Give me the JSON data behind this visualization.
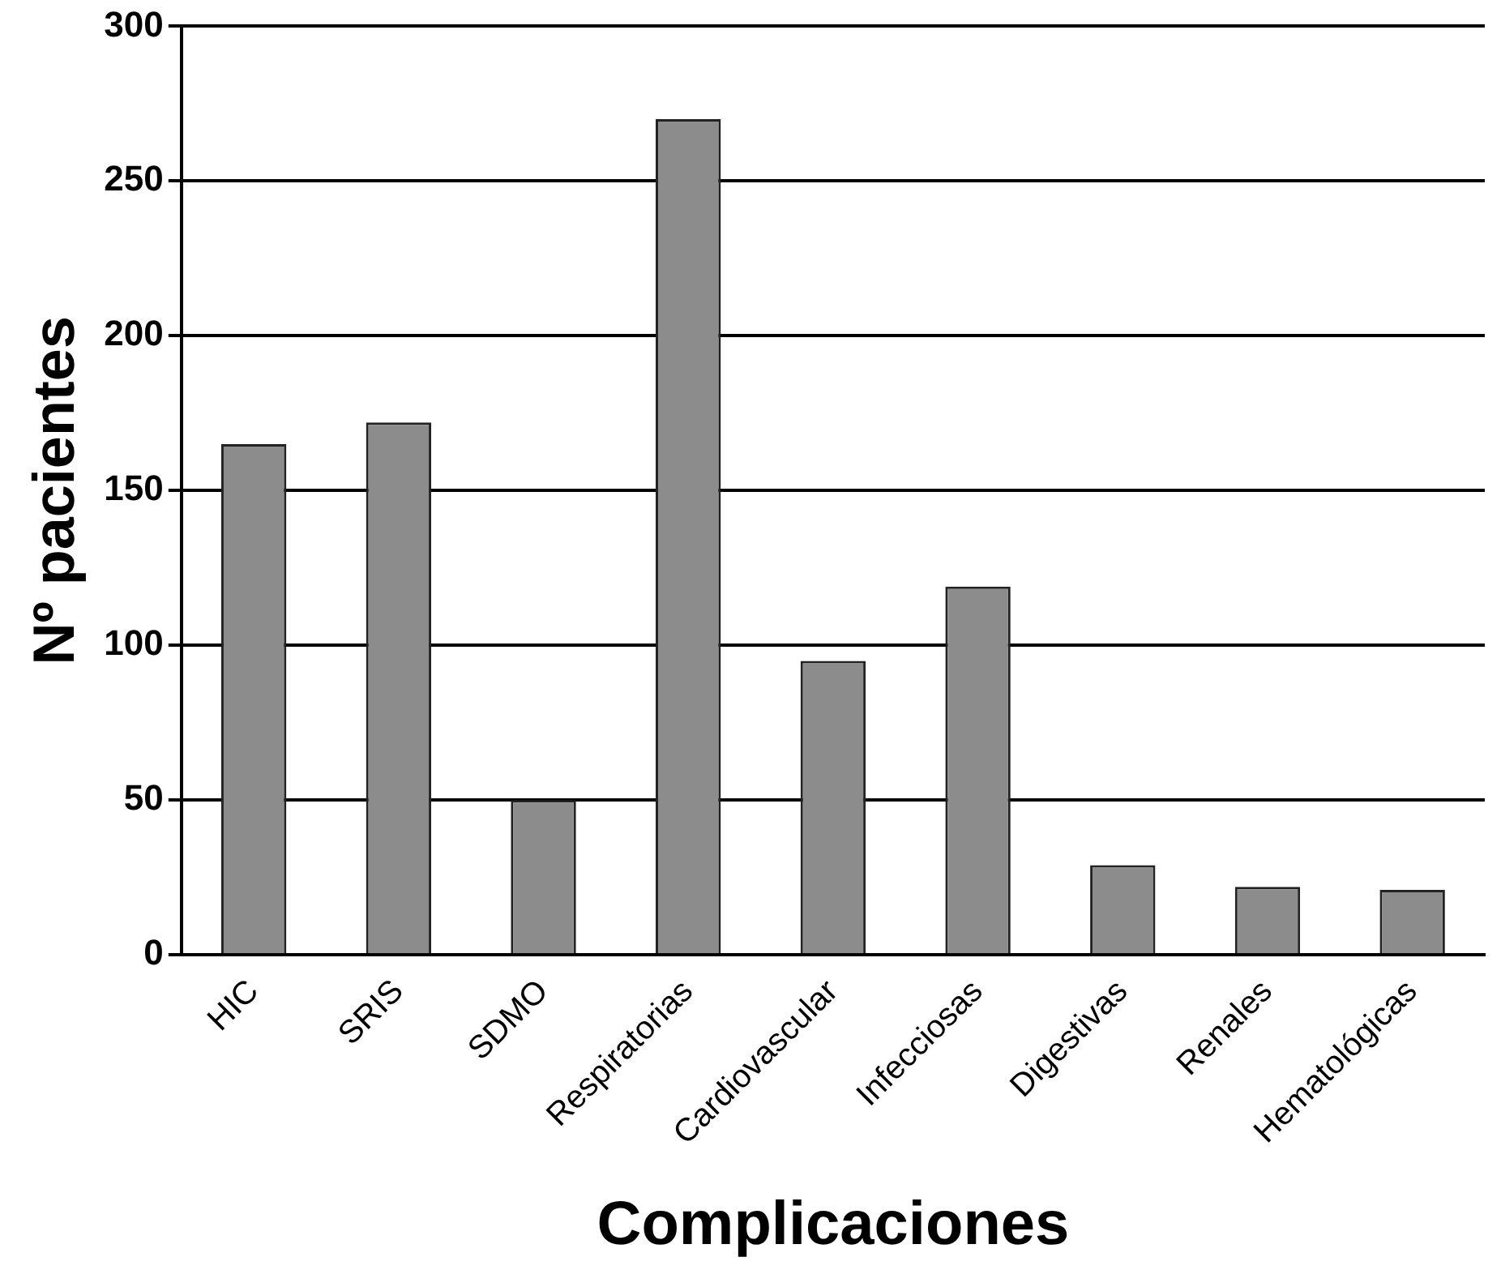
{
  "chart_data": {
    "type": "bar",
    "xlabel": "Complicaciones",
    "ylabel": "Nº pacientes",
    "categories": [
      "HIC",
      "SRIS",
      "SDMO",
      "Respiratorias",
      "Cardiovascular",
      "Infecciosas",
      "Digestivas",
      "Renales",
      "Hematológicas"
    ],
    "values": [
      165,
      172,
      50,
      270,
      95,
      119,
      29,
      22,
      21
    ],
    "color": "#8c8c8c",
    "ylim": [
      0,
      300
    ],
    "yticks": [
      0,
      50,
      100,
      150,
      200,
      250,
      300
    ],
    "grid": "y",
    "legend": false
  }
}
